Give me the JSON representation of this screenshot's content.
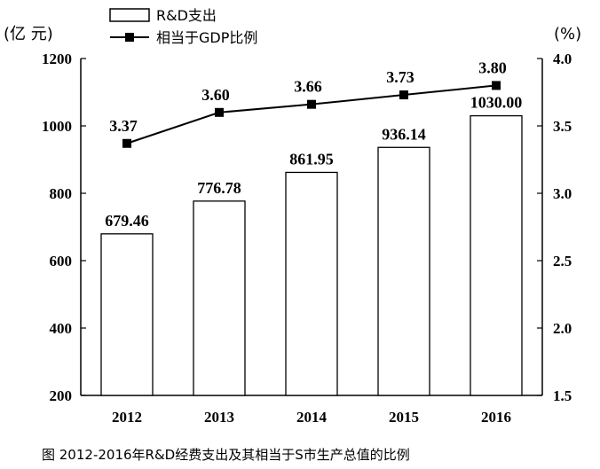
{
  "chart_data": {
    "type": "bar",
    "categories": [
      "2012",
      "2013",
      "2014",
      "2015",
      "2016"
    ],
    "series": [
      {
        "name": "R&D支出",
        "kind": "bar",
        "axis": "left",
        "values": [
          679.46,
          776.78,
          861.95,
          936.14,
          1030.0
        ],
        "labels": [
          "679.46",
          "776.78",
          "861.95",
          "936.14",
          "1030.00"
        ]
      },
      {
        "name": "相当于GDP比例",
        "kind": "line",
        "axis": "right",
        "values": [
          3.37,
          3.6,
          3.66,
          3.73,
          3.8
        ],
        "labels": [
          "3.37",
          "3.60",
          "3.66",
          "3.73",
          "3.80"
        ]
      }
    ],
    "left_axis": {
      "label": "(亿 元)",
      "ylim": [
        200,
        1200
      ],
      "ticks": [
        "200",
        "400",
        "600",
        "800",
        "1000",
        "1200"
      ]
    },
    "right_axis": {
      "label": "(%)",
      "ylim": [
        1.5,
        4.0
      ],
      "ticks": [
        "1.5",
        "2.0",
        "2.5",
        "3.0",
        "3.5",
        "4.0"
      ]
    },
    "legend": {
      "placement": "top-center",
      "entries": [
        "R&D支出",
        "相当于GDP比例"
      ]
    },
    "caption": "图    2012-2016年R&D经费支出及其相当于S市生产总值的比例",
    "colors": {
      "bar_fill": "#ffffff",
      "bar_stroke": "#000000",
      "line": "#000000"
    },
    "grid": false
  }
}
